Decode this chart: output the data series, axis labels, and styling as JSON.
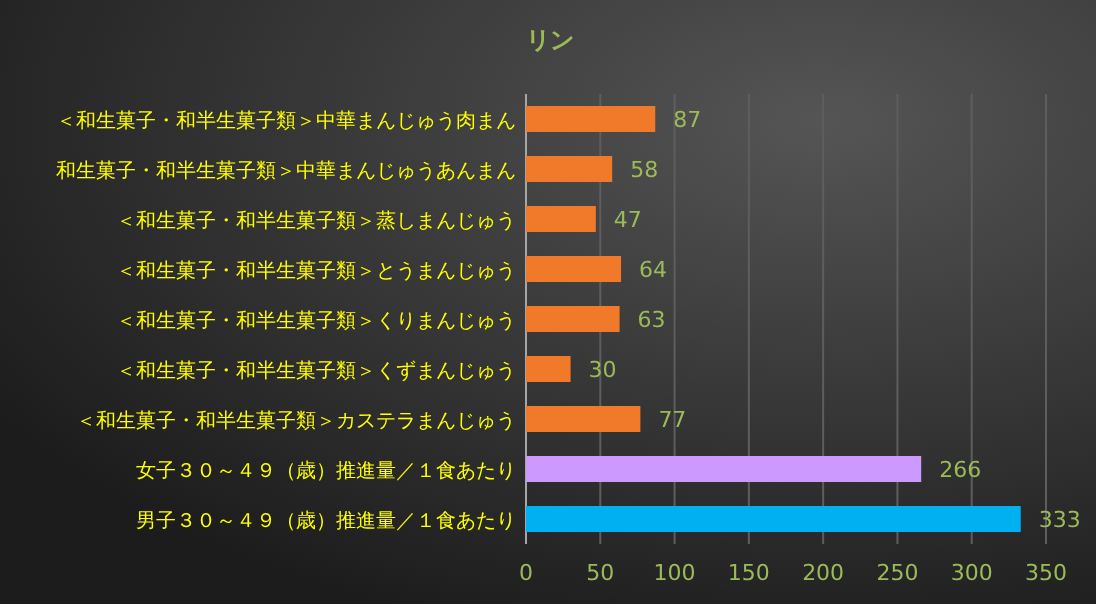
{
  "chart_data": {
    "type": "bar",
    "orientation": "horizontal",
    "title": "リン",
    "categories": [
      "＜和生菓子・和半生菓子類＞中華まんじゅう肉まん",
      "和生菓子・和半生菓子類＞中華まんじゅうあんまん",
      "＜和生菓子・和半生菓子類＞蒸しまんじゅう",
      "＜和生菓子・和半生菓子類＞とうまんじゅう",
      "＜和生菓子・和半生菓子類＞くりまんじゅう",
      "＜和生菓子・和半生菓子類＞くずまんじゅう",
      "＜和生菓子・和半生菓子類＞カステラまんじゅう",
      "女子３０～４９（歳）推進量／１食あたり",
      "男子３０～４９（歳）推進量／１食あたり"
    ],
    "values": [
      87,
      58,
      47,
      64,
      63,
      30,
      77,
      266,
      333
    ],
    "colors": [
      "#f07a2a",
      "#f07a2a",
      "#f07a2a",
      "#f07a2a",
      "#f07a2a",
      "#f07a2a",
      "#f07a2a",
      "#cc99ff",
      "#00b0f0"
    ],
    "xlim": [
      0,
      350
    ],
    "xticks": [
      0,
      50,
      100,
      150,
      200,
      250,
      300,
      350
    ],
    "grid": "x",
    "data_labels": true
  }
}
